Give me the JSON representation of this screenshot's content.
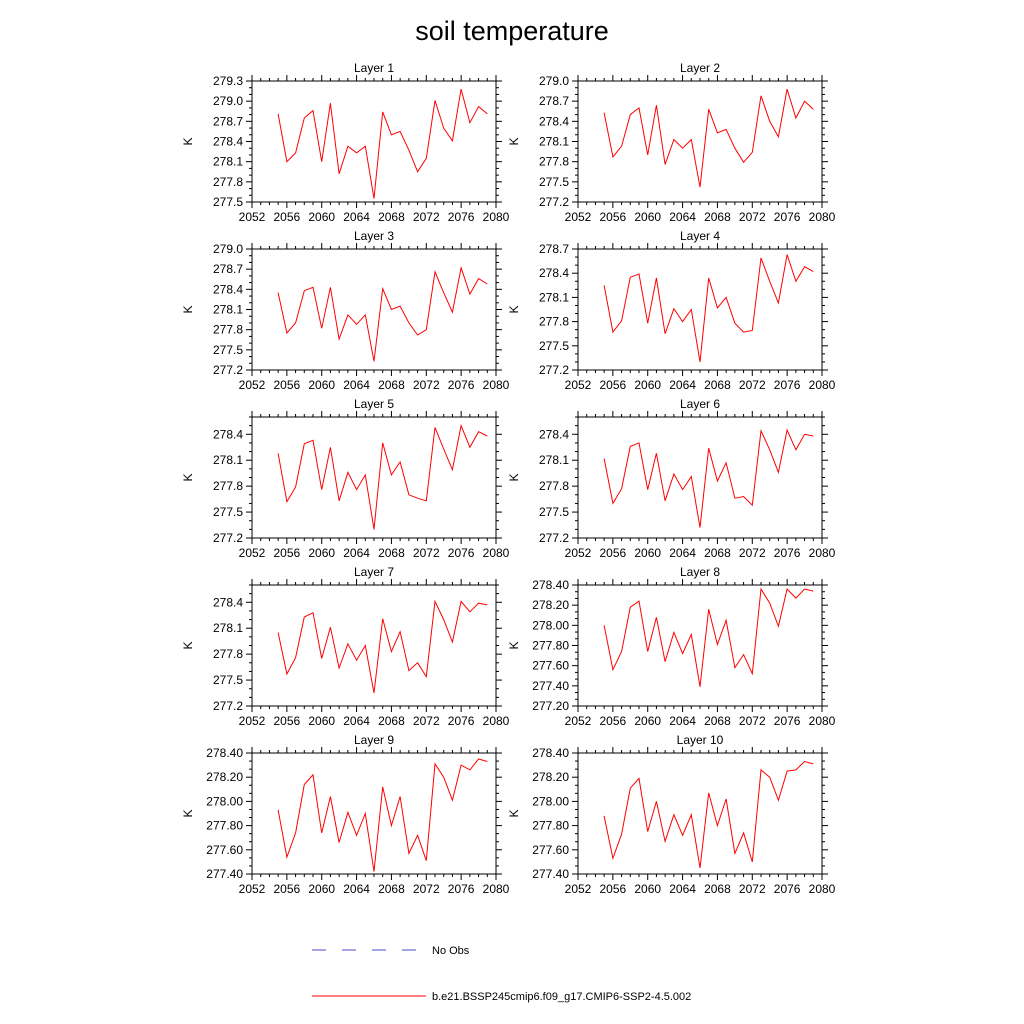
{
  "title": "soil temperature",
  "legend": [
    {
      "label": "No Obs",
      "color": "#4a4acf",
      "dash": "dashed"
    },
    {
      "label": "b.e21.BSSP245cmip6.f09_g17.CMIP6-SSP2-4.5.002",
      "color": "#ff0000",
      "dash": "solid"
    }
  ],
  "colors": {
    "series": "#ff0000",
    "no_obs": "#4a4acf"
  },
  "chart_data": [
    {
      "type": "line",
      "title": "Layer 1",
      "xlabel": "",
      "ylabel": "K",
      "xlim": [
        2052,
        2080
      ],
      "ylim": [
        277.5,
        279.3
      ],
      "xticks": [
        "2052",
        "2056",
        "2060",
        "2064",
        "2068",
        "2072",
        "2076",
        "2080"
      ],
      "yticks": [
        "277.5",
        "277.8",
        "278.1",
        "278.4",
        "278.7",
        "279.0",
        "279.3"
      ],
      "series": [
        {
          "name": "b.e21.BSSP245cmip6.f09_g17.CMIP6-SSP2-4.5.002",
          "x": [
            2055,
            2056,
            2057,
            2058,
            2059,
            2060,
            2061,
            2062,
            2063,
            2064,
            2065,
            2066,
            2067,
            2068,
            2069,
            2070,
            2071,
            2072,
            2073,
            2074,
            2075,
            2076,
            2077,
            2078,
            2079
          ],
          "y": [
            278.81,
            278.1,
            278.23,
            278.75,
            278.86,
            278.1,
            278.97,
            277.92,
            278.33,
            278.23,
            278.33,
            277.55,
            278.84,
            278.5,
            278.55,
            278.27,
            277.95,
            278.15,
            279.01,
            278.6,
            278.41,
            279.18,
            278.68,
            278.92,
            278.81
          ]
        }
      ]
    },
    {
      "type": "line",
      "title": "Layer 2",
      "xlabel": "",
      "ylabel": "K",
      "xlim": [
        2052,
        2080
      ],
      "ylim": [
        277.2,
        279.0
      ],
      "xticks": [
        "2052",
        "2056",
        "2060",
        "2064",
        "2068",
        "2072",
        "2076",
        "2080"
      ],
      "yticks": [
        "277.2",
        "277.5",
        "277.8",
        "278.1",
        "278.4",
        "278.7",
        "279.0"
      ],
      "series": [
        {
          "name": "b.e21.BSSP245cmip6.f09_g17.CMIP6-SSP2-4.5.002",
          "x": [
            2055,
            2056,
            2057,
            2058,
            2059,
            2060,
            2061,
            2062,
            2063,
            2064,
            2065,
            2066,
            2067,
            2068,
            2069,
            2070,
            2071,
            2072,
            2073,
            2074,
            2075,
            2076,
            2077,
            2078,
            2079
          ],
          "y": [
            278.53,
            277.87,
            278.03,
            278.5,
            278.6,
            277.9,
            278.64,
            277.76,
            278.13,
            278.0,
            278.13,
            277.42,
            278.58,
            278.23,
            278.28,
            278.0,
            277.79,
            277.94,
            278.78,
            278.4,
            278.17,
            278.88,
            278.45,
            278.7,
            278.58
          ]
        }
      ]
    },
    {
      "type": "line",
      "title": "Layer 3",
      "xlabel": "",
      "ylabel": "K",
      "xlim": [
        2052,
        2080
      ],
      "ylim": [
        277.2,
        279.0
      ],
      "xticks": [
        "2052",
        "2056",
        "2060",
        "2064",
        "2068",
        "2072",
        "2076",
        "2080"
      ],
      "yticks": [
        "277.2",
        "277.5",
        "277.8",
        "278.1",
        "278.4",
        "278.7",
        "279.0"
      ],
      "series": [
        {
          "name": "b.e21.BSSP245cmip6.f09_g17.CMIP6-SSP2-4.5.002",
          "x": [
            2055,
            2056,
            2057,
            2058,
            2059,
            2060,
            2061,
            2062,
            2063,
            2064,
            2065,
            2066,
            2067,
            2068,
            2069,
            2070,
            2071,
            2072,
            2073,
            2074,
            2075,
            2076,
            2077,
            2078,
            2079
          ],
          "y": [
            278.35,
            277.75,
            277.9,
            278.38,
            278.43,
            277.82,
            278.43,
            277.66,
            278.02,
            277.88,
            278.02,
            277.33,
            278.41,
            278.1,
            278.15,
            277.9,
            277.72,
            277.8,
            278.66,
            278.35,
            278.06,
            278.72,
            278.33,
            278.56,
            278.48
          ]
        }
      ]
    },
    {
      "type": "line",
      "title": "Layer 4",
      "xlabel": "",
      "ylabel": "K",
      "xlim": [
        2052,
        2080
      ],
      "ylim": [
        277.2,
        278.7
      ],
      "xticks": [
        "2052",
        "2056",
        "2060",
        "2064",
        "2068",
        "2072",
        "2076",
        "2080"
      ],
      "yticks": [
        "277.2",
        "277.5",
        "277.8",
        "278.1",
        "278.4",
        "278.7"
      ],
      "series": [
        {
          "name": "b.e21.BSSP245cmip6.f09_g17.CMIP6-SSP2-4.5.002",
          "x": [
            2055,
            2056,
            2057,
            2058,
            2059,
            2060,
            2061,
            2062,
            2063,
            2064,
            2065,
            2066,
            2067,
            2068,
            2069,
            2070,
            2071,
            2072,
            2073,
            2074,
            2075,
            2076,
            2077,
            2078,
            2079
          ],
          "y": [
            278.25,
            277.67,
            277.81,
            278.35,
            278.39,
            277.78,
            278.34,
            277.65,
            277.96,
            277.8,
            277.95,
            277.3,
            278.34,
            277.97,
            278.1,
            277.78,
            277.67,
            277.69,
            278.59,
            278.3,
            278.03,
            278.63,
            278.3,
            278.48,
            278.42
          ]
        }
      ]
    },
    {
      "type": "line",
      "title": "Layer 5",
      "xlabel": "",
      "ylabel": "K",
      "xlim": [
        2052,
        2080
      ],
      "ylim": [
        277.2,
        278.6
      ],
      "xticks": [
        "2052",
        "2056",
        "2060",
        "2064",
        "2068",
        "2072",
        "2076",
        "2080"
      ],
      "yticks": [
        "277.2",
        "277.5",
        "277.8",
        "278.1",
        "278.4"
      ],
      "series": [
        {
          "name": "b.e21.BSSP245cmip6.f09_g17.CMIP6-SSP2-4.5.002",
          "x": [
            2055,
            2056,
            2057,
            2058,
            2059,
            2060,
            2061,
            2062,
            2063,
            2064,
            2065,
            2066,
            2067,
            2068,
            2069,
            2070,
            2071,
            2072,
            2073,
            2074,
            2075,
            2076,
            2077,
            2078,
            2079
          ],
          "y": [
            278.18,
            277.62,
            277.79,
            278.29,
            278.33,
            277.76,
            278.25,
            277.63,
            277.96,
            277.76,
            277.93,
            277.3,
            278.3,
            277.93,
            278.08,
            277.7,
            277.66,
            277.63,
            278.48,
            278.23,
            277.99,
            278.5,
            278.25,
            278.43,
            278.38
          ]
        }
      ]
    },
    {
      "type": "line",
      "title": "Layer 6",
      "xlabel": "",
      "ylabel": "K",
      "xlim": [
        2052,
        2080
      ],
      "ylim": [
        277.2,
        278.6
      ],
      "xticks": [
        "2052",
        "2056",
        "2060",
        "2064",
        "2068",
        "2072",
        "2076",
        "2080"
      ],
      "yticks": [
        "277.2",
        "277.5",
        "277.8",
        "278.1",
        "278.4"
      ],
      "series": [
        {
          "name": "b.e21.BSSP245cmip6.f09_g17.CMIP6-SSP2-4.5.002",
          "x": [
            2055,
            2056,
            2057,
            2058,
            2059,
            2060,
            2061,
            2062,
            2063,
            2064,
            2065,
            2066,
            2067,
            2068,
            2069,
            2070,
            2071,
            2072,
            2073,
            2074,
            2075,
            2076,
            2077,
            2078,
            2079
          ],
          "y": [
            278.12,
            277.6,
            277.77,
            278.26,
            278.3,
            277.76,
            278.18,
            277.63,
            277.94,
            277.76,
            277.91,
            277.32,
            278.24,
            277.86,
            278.07,
            277.66,
            277.68,
            277.58,
            278.44,
            278.22,
            277.96,
            278.45,
            278.22,
            278.4,
            278.38
          ]
        }
      ]
    },
    {
      "type": "line",
      "title": "Layer 7",
      "xlabel": "",
      "ylabel": "K",
      "xlim": [
        2052,
        2080
      ],
      "ylim": [
        277.2,
        278.6
      ],
      "xticks": [
        "2052",
        "2056",
        "2060",
        "2064",
        "2068",
        "2072",
        "2076",
        "2080"
      ],
      "yticks": [
        "277.2",
        "277.5",
        "277.8",
        "278.1",
        "278.4"
      ],
      "series": [
        {
          "name": "b.e21.BSSP245cmip6.f09_g17.CMIP6-SSP2-4.5.002",
          "x": [
            2055,
            2056,
            2057,
            2058,
            2059,
            2060,
            2061,
            2062,
            2063,
            2064,
            2065,
            2066,
            2067,
            2068,
            2069,
            2070,
            2071,
            2072,
            2073,
            2074,
            2075,
            2076,
            2077,
            2078,
            2079
          ],
          "y": [
            278.05,
            277.57,
            277.76,
            278.23,
            278.28,
            277.75,
            278.11,
            277.64,
            277.92,
            277.73,
            277.9,
            277.35,
            278.21,
            277.83,
            278.06,
            277.61,
            277.7,
            277.54,
            278.41,
            278.2,
            277.94,
            278.41,
            278.29,
            278.39,
            278.37
          ]
        }
      ]
    },
    {
      "type": "line",
      "title": "Layer 8",
      "xlabel": "",
      "ylabel": "K",
      "xlim": [
        2052,
        2080
      ],
      "ylim": [
        277.2,
        278.4
      ],
      "xticks": [
        "2052",
        "2056",
        "2060",
        "2064",
        "2068",
        "2072",
        "2076",
        "2080"
      ],
      "yticks": [
        "277.20",
        "277.40",
        "277.60",
        "277.80",
        "278.00",
        "278.20",
        "278.40"
      ],
      "series": [
        {
          "name": "b.e21.BSSP245cmip6.f09_g17.CMIP6-SSP2-4.5.002",
          "x": [
            2055,
            2056,
            2057,
            2058,
            2059,
            2060,
            2061,
            2062,
            2063,
            2064,
            2065,
            2066,
            2067,
            2068,
            2069,
            2070,
            2071,
            2072,
            2073,
            2074,
            2075,
            2076,
            2077,
            2078,
            2079
          ],
          "y": [
            278.0,
            277.56,
            277.74,
            278.18,
            278.24,
            277.74,
            278.08,
            277.64,
            277.93,
            277.72,
            277.91,
            277.39,
            278.16,
            277.81,
            278.05,
            277.58,
            277.71,
            277.52,
            278.36,
            278.22,
            277.99,
            278.36,
            278.27,
            278.36,
            278.34
          ]
        }
      ]
    },
    {
      "type": "line",
      "title": "Layer 9",
      "xlabel": "",
      "ylabel": "K",
      "xlim": [
        2052,
        2080
      ],
      "ylim": [
        277.4,
        278.4
      ],
      "xticks": [
        "2052",
        "2056",
        "2060",
        "2064",
        "2068",
        "2072",
        "2076",
        "2080"
      ],
      "yticks": [
        "277.40",
        "277.60",
        "277.80",
        "278.00",
        "278.20",
        "278.40"
      ],
      "series": [
        {
          "name": "b.e21.BSSP245cmip6.f09_g17.CMIP6-SSP2-4.5.002",
          "x": [
            2055,
            2056,
            2057,
            2058,
            2059,
            2060,
            2061,
            2062,
            2063,
            2064,
            2065,
            2066,
            2067,
            2068,
            2069,
            2070,
            2071,
            2072,
            2073,
            2074,
            2075,
            2076,
            2077,
            2078,
            2079
          ],
          "y": [
            277.93,
            277.54,
            277.74,
            278.14,
            278.22,
            277.74,
            278.04,
            277.66,
            277.91,
            277.72,
            277.9,
            277.42,
            278.12,
            277.8,
            278.04,
            277.57,
            277.72,
            277.51,
            278.31,
            278.2,
            278.01,
            278.3,
            278.26,
            278.35,
            278.33
          ]
        }
      ]
    },
    {
      "type": "line",
      "title": "Layer 10",
      "xlabel": "",
      "ylabel": "K",
      "xlim": [
        2052,
        2080
      ],
      "ylim": [
        277.4,
        278.4
      ],
      "xticks": [
        "2052",
        "2056",
        "2060",
        "2064",
        "2068",
        "2072",
        "2076",
        "2080"
      ],
      "yticks": [
        "277.40",
        "277.60",
        "277.80",
        "278.00",
        "278.20",
        "278.40"
      ],
      "series": [
        {
          "name": "b.e21.BSSP245cmip6.f09_g17.CMIP6-SSP2-4.5.002",
          "x": [
            2055,
            2056,
            2057,
            2058,
            2059,
            2060,
            2061,
            2062,
            2063,
            2064,
            2065,
            2066,
            2067,
            2068,
            2069,
            2070,
            2071,
            2072,
            2073,
            2074,
            2075,
            2076,
            2077,
            2078,
            2079
          ],
          "y": [
            277.88,
            277.53,
            277.73,
            278.11,
            278.19,
            277.75,
            278.0,
            277.67,
            277.89,
            277.72,
            277.89,
            277.45,
            278.07,
            277.8,
            278.02,
            277.57,
            277.74,
            277.5,
            278.26,
            278.2,
            278.01,
            278.25,
            278.26,
            278.33,
            278.31
          ]
        }
      ]
    }
  ]
}
